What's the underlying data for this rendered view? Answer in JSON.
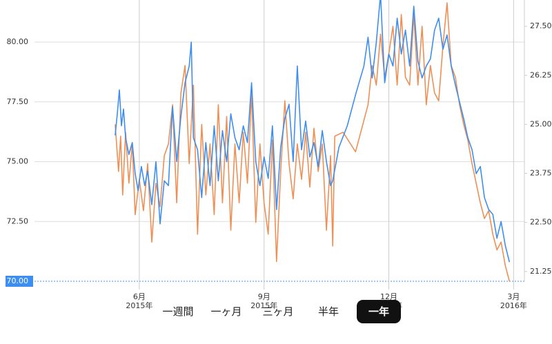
{
  "chart_data": {
    "type": "line",
    "xlim": [
      2.65,
      15.26
    ],
    "xticks": [
      {
        "value": 6,
        "label": "6月\n2015年"
      },
      {
        "value": 9,
        "label": "9月\n2015年"
      },
      {
        "value": 12,
        "label": "12月\n2015年"
      },
      {
        "value": 15,
        "label": "3月\n2016年"
      }
    ],
    "ylim": [
      70,
      81.76
    ],
    "yticks": [
      {
        "value": 70,
        "label": "70.00"
      },
      {
        "value": 72.5,
        "label": "72.50"
      },
      {
        "value": 75,
        "label": "75.00"
      },
      {
        "value": 77.5,
        "label": "77.50"
      },
      {
        "value": 80,
        "label": "80.00"
      }
    ],
    "y2lim": [
      21.0,
      28.17
    ],
    "y2ticks": [
      {
        "value": 21.25,
        "label": "21.25"
      },
      {
        "value": 22.5,
        "label": "22.50"
      },
      {
        "value": 23.75,
        "label": "23.75"
      },
      {
        "value": 25,
        "label": "25.00"
      },
      {
        "value": 26.25,
        "label": "26.25"
      },
      {
        "value": 27.5,
        "label": "27.50"
      }
    ],
    "grid": true,
    "series": [
      {
        "color": "#3d8ef0",
        "axis": "y",
        "x": [
          5.42,
          5.47,
          5.52,
          5.57,
          5.62,
          5.67,
          5.75,
          5.83,
          5.9,
          5.97,
          6.05,
          6.13,
          6.2,
          6.3,
          6.4,
          6.5,
          6.6,
          6.7,
          6.8,
          6.9,
          7.0,
          7.1,
          7.2,
          7.25,
          7.3,
          7.4,
          7.5,
          7.6,
          7.7,
          7.8,
          7.9,
          8.0,
          8.1,
          8.2,
          8.3,
          8.4,
          8.5,
          8.6,
          8.7,
          8.8,
          8.9,
          9.0,
          9.1,
          9.2,
          9.3,
          9.4,
          9.5,
          9.6,
          9.7,
          9.8,
          9.9,
          10.0,
          10.1,
          10.2,
          10.3,
          10.4,
          10.5,
          10.6,
          10.65,
          10.8,
          11.0,
          11.2,
          11.4,
          11.5,
          11.6,
          11.7,
          11.8,
          11.9,
          12.0,
          12.1,
          12.2,
          12.3,
          12.4,
          12.5,
          12.6,
          12.7,
          12.8,
          12.9,
          13.0,
          13.1,
          13.2,
          13.3,
          13.4,
          13.5,
          13.6,
          13.7,
          13.8,
          13.9,
          14.0,
          14.1,
          14.2,
          14.3,
          14.4,
          14.5,
          14.6,
          14.7,
          14.8,
          14.9
        ],
        "values": [
          76.1,
          77.0,
          78.0,
          76.5,
          77.2,
          76.0,
          75.3,
          75.8,
          74.5,
          73.8,
          74.8,
          74.0,
          74.6,
          73.2,
          75.0,
          72.4,
          74.2,
          74.0,
          77.3,
          75.0,
          76.9,
          78.3,
          79.0,
          80.0,
          76.0,
          75.5,
          73.5,
          75.8,
          74.0,
          76.5,
          74.2,
          76.3,
          75.0,
          77.0,
          76.0,
          75.5,
          76.5,
          75.8,
          78.3,
          75.0,
          74.0,
          75.2,
          74.3,
          76.5,
          73.0,
          75.6,
          76.8,
          77.4,
          75.0,
          79.0,
          75.5,
          76.7,
          75.2,
          75.8,
          74.8,
          76.3,
          75.0,
          74.0,
          74.2,
          75.6,
          76.5,
          77.8,
          79.0,
          80.2,
          78.5,
          80.0,
          82.0,
          78.3,
          79.5,
          79.0,
          81.0,
          79.5,
          80.5,
          79.0,
          81.5,
          79.2,
          78.5,
          79.0,
          79.3,
          80.5,
          81.0,
          79.7,
          80.3,
          79.0,
          78.2,
          77.5,
          76.8,
          76.0,
          75.5,
          74.5,
          74.8,
          73.5,
          73.0,
          72.8,
          71.8,
          72.5,
          71.5,
          70.8
        ]
      },
      {
        "color": "#ee8f55",
        "axis": "y2",
        "x": [
          5.42,
          5.5,
          5.55,
          5.6,
          5.67,
          5.75,
          5.83,
          5.9,
          6.0,
          6.1,
          6.2,
          6.3,
          6.4,
          6.5,
          6.6,
          6.7,
          6.8,
          6.9,
          7.0,
          7.1,
          7.2,
          7.3,
          7.4,
          7.5,
          7.6,
          7.7,
          7.8,
          7.9,
          8.0,
          8.1,
          8.2,
          8.3,
          8.4,
          8.5,
          8.6,
          8.7,
          8.8,
          8.9,
          9.0,
          9.1,
          9.2,
          9.3,
          9.4,
          9.5,
          9.6,
          9.7,
          9.8,
          9.9,
          10.0,
          10.1,
          10.2,
          10.3,
          10.4,
          10.5,
          10.6,
          10.65,
          10.7,
          10.9,
          11.2,
          11.5,
          11.6,
          11.7,
          11.8,
          11.9,
          12.0,
          12.1,
          12.2,
          12.3,
          12.4,
          12.5,
          12.6,
          12.7,
          12.8,
          12.9,
          13.0,
          13.1,
          13.2,
          13.3,
          13.4,
          13.5,
          13.6,
          13.7,
          13.8,
          13.9,
          14.0,
          14.1,
          14.2,
          14.3,
          14.4,
          14.5,
          14.6,
          14.7,
          14.8,
          14.9
        ],
        "values": [
          25.0,
          23.8,
          24.7,
          23.2,
          24.8,
          23.5,
          24.5,
          22.7,
          23.6,
          22.8,
          24.0,
          22.0,
          23.5,
          22.9,
          24.2,
          24.5,
          25.5,
          23.0,
          25.8,
          26.5,
          24.0,
          26.0,
          22.2,
          25.0,
          23.2,
          24.5,
          22.7,
          25.5,
          23.0,
          25.2,
          22.3,
          24.5,
          23.0,
          24.8,
          23.5,
          25.8,
          22.5,
          24.5,
          23.0,
          22.2,
          24.6,
          21.5,
          23.8,
          25.6,
          24.0,
          23.1,
          24.5,
          23.6,
          24.8,
          23.4,
          24.9,
          23.8,
          24.5,
          22.3,
          24.2,
          21.9,
          24.7,
          24.8,
          24.3,
          25.5,
          26.5,
          26.0,
          27.3,
          26.2,
          26.8,
          27.5,
          26.0,
          27.8,
          26.2,
          26.0,
          27.8,
          26.0,
          27.5,
          25.5,
          26.5,
          25.8,
          25.6,
          27.0,
          28.1,
          26.5,
          26.2,
          25.5,
          25.0,
          24.6,
          24.0,
          23.5,
          23.0,
          22.6,
          22.8,
          22.2,
          21.8,
          22.0,
          21.4,
          21.0
        ]
      }
    ]
  },
  "controls": {
    "periods": [
      "一週間",
      "一ヶ月",
      "三ヶ月",
      "半年",
      "一年"
    ],
    "selected": 4
  }
}
